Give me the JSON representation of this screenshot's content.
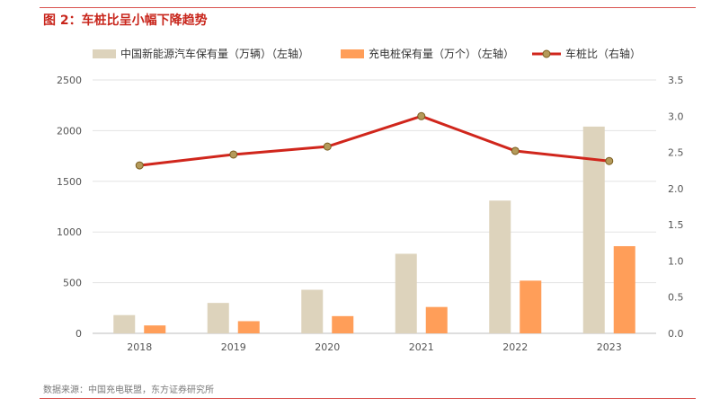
{
  "figure": {
    "number": "图 2：",
    "title": "车桩比呈小幅下降趋势",
    "source": "数据来源：中国充电联盟，东方证券研究所"
  },
  "chart_data": {
    "type": "bar",
    "categories": [
      "2018",
      "2019",
      "2020",
      "2021",
      "2022",
      "2023"
    ],
    "series": [
      {
        "name": "中国新能源汽车保有量（万辆）（左轴）",
        "type": "bar",
        "axis": "left",
        "color": "#ddd3bc",
        "values": [
          180,
          300,
          430,
          785,
          1310,
          2040
        ]
      },
      {
        "name": "充电桩保有量（万个）（左轴）",
        "type": "bar",
        "axis": "left",
        "color": "#ff9e59",
        "values": [
          78,
          120,
          170,
          260,
          520,
          860
        ]
      },
      {
        "name": "车桩比（右轴）",
        "type": "line",
        "axis": "right",
        "color": "#d0261c",
        "marker_color": "#b49a5a",
        "values": [
          2.32,
          2.47,
          2.58,
          3.0,
          2.52,
          2.38
        ]
      }
    ],
    "y_left": {
      "ylim": [
        0,
        2500
      ],
      "ticks": [
        "0",
        "500",
        "1000",
        "1500",
        "2000",
        "2500"
      ]
    },
    "y_right": {
      "ylim": [
        0,
        3.5
      ],
      "ticks": [
        "0.0",
        "0.5",
        "1.0",
        "1.5",
        "2.0",
        "2.5",
        "3.0",
        "3.5"
      ]
    },
    "grid": "horizontal",
    "legend": "top"
  }
}
